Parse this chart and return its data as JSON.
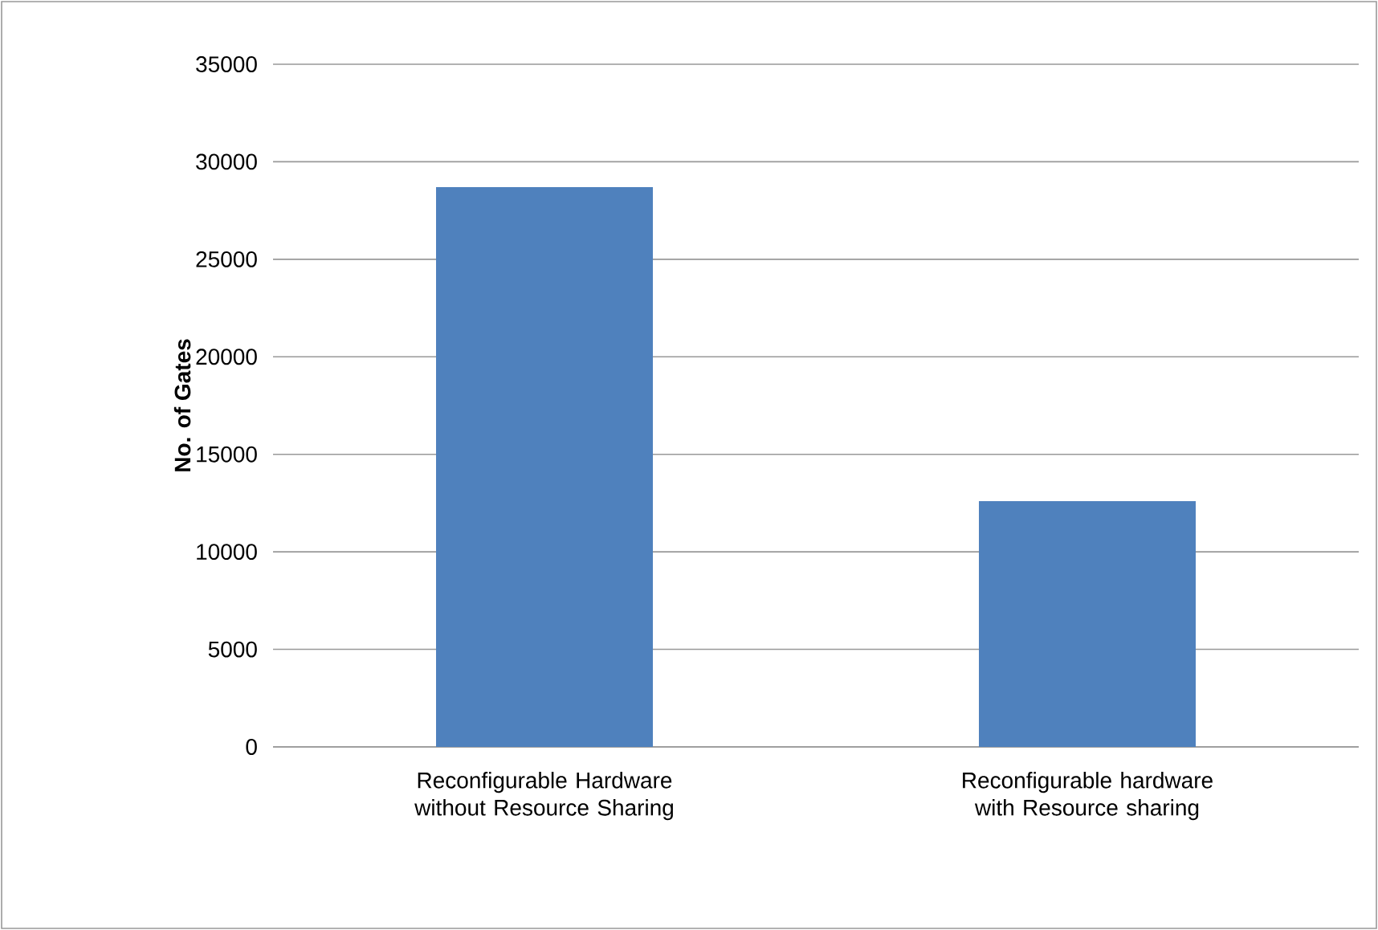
{
  "chart_data": {
    "type": "bar",
    "ylabel": "No. of Gates",
    "categories": [
      "Reconfigurable Hardware without Resource Sharing",
      "Reconfigurable hardware with Resource sharing"
    ],
    "values": [
      28700,
      12600
    ],
    "color": "#4f81bd",
    "ylim": [
      0,
      35000
    ],
    "yticks": [
      0,
      5000,
      10000,
      15000,
      20000,
      25000,
      30000,
      35000
    ],
    "grid": "y"
  }
}
